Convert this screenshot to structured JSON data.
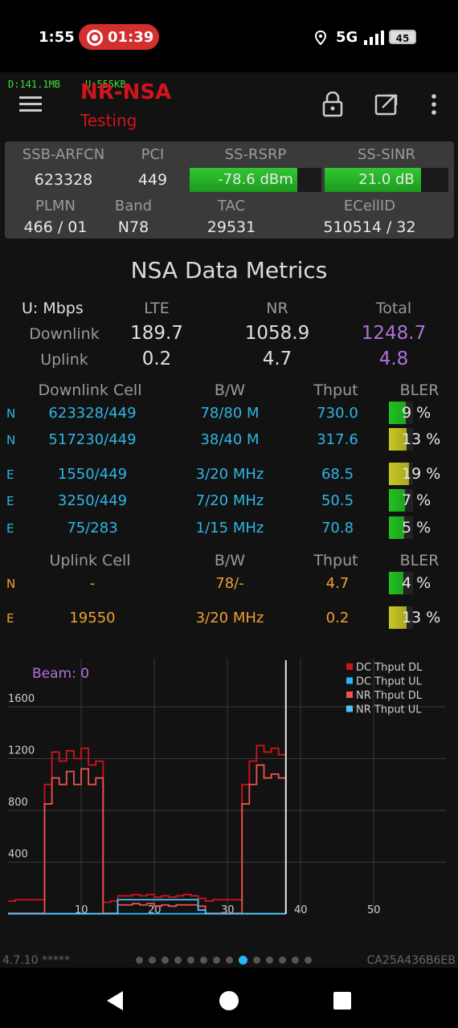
{
  "status_bar": {
    "time": "1:55",
    "recording_time": "01:39",
    "network": "5G",
    "battery": "45"
  },
  "app_bar": {
    "download_traffic": "D:141.1MB",
    "upload_traffic": "U:555KB",
    "title": "NR-NSA",
    "subtitle": "Testing"
  },
  "cell_info": {
    "labels": {
      "arfcn": "SSB-ARFCN",
      "pci": "PCI",
      "rsrp": "SS-RSRP",
      "sinr": "SS-SINR",
      "plmn": "PLMN",
      "band": "Band",
      "tac": "TAC",
      "ecellid": "ECellID"
    },
    "arfcn": "623328",
    "pci": "449",
    "rsrp": "-78.6 dBm",
    "rsrp_level": 0.82,
    "sinr": "21.0 dB",
    "sinr_level": 0.78,
    "plmn": "466 / 01",
    "band": "N78",
    "tac": "29531",
    "ecellid": "510514 / 32"
  },
  "metrics": {
    "heading": "NSA Data Metrics",
    "unit_label": "U: Mbps",
    "col_lte": "LTE",
    "col_nr": "NR",
    "col_total": "Total",
    "downlink_label": "Downlink",
    "uplink_label": "Uplink",
    "dl_lte": "189.7",
    "dl_nr": "1058.9",
    "dl_total": "1248.7",
    "ul_lte": "0.2",
    "ul_nr": "4.7",
    "ul_total": "4.8"
  },
  "downlink_cells": {
    "headers": {
      "cell": "Downlink Cell",
      "bw": "B/W",
      "thput": "Thput",
      "bler": "BLER"
    },
    "rows": [
      {
        "tag": "N",
        "cell": "623328/449",
        "bw": "78/80 M",
        "thput": "730.0",
        "bler": "9 %",
        "bler_level": 0.09,
        "color": "#1fc21f"
      },
      {
        "tag": "N",
        "cell": "517230/449",
        "bw": "38/40 M",
        "thput": "317.6",
        "bler": "13 %",
        "bler_level": 0.13,
        "color": "#c8c822"
      },
      {
        "tag": "E",
        "cell": "1550/449",
        "bw": "3/20 MHz",
        "thput": "68.5",
        "bler": "19 %",
        "bler_level": 0.19,
        "color": "#c8c822"
      },
      {
        "tag": "E",
        "cell": "3250/449",
        "bw": "7/20 MHz",
        "thput": "50.5",
        "bler": "7 %",
        "bler_level": 0.07,
        "color": "#1fc21f"
      },
      {
        "tag": "E",
        "cell": "75/283",
        "bw": "1/15 MHz",
        "thput": "70.8",
        "bler": "5 %",
        "bler_level": 0.05,
        "color": "#1fc21f"
      }
    ]
  },
  "uplink_cells": {
    "headers": {
      "cell": "Uplink Cell",
      "bw": "B/W",
      "thput": "Thput",
      "bler": "BLER"
    },
    "rows": [
      {
        "tag": "N",
        "cell": "-",
        "bw": "78/-",
        "thput": "4.7",
        "bler": "4 %",
        "bler_level": 0.04,
        "color": "#1fc21f"
      },
      {
        "tag": "E",
        "cell": "19550",
        "bw": "3/20 MHz",
        "thput": "0.2",
        "bler": "13 %",
        "bler_level": 0.13,
        "color": "#c8c822"
      }
    ]
  },
  "chart_data": {
    "type": "line",
    "annotation": "Beam: 0",
    "xlim": [
      0,
      50
    ],
    "ylim": [
      0,
      1600
    ],
    "x_ticks": [
      10,
      20,
      30,
      40,
      50
    ],
    "y_ticks": [
      400,
      800,
      1200,
      1600
    ],
    "cursor_x": 38,
    "legend_position": "top-right",
    "grid": true,
    "series": [
      {
        "name": "DC Thput DL",
        "color": "#d0141a",
        "x": [
          0,
          1,
          2,
          3,
          4,
          5,
          6,
          7,
          8,
          9,
          10,
          11,
          12,
          13,
          14,
          15,
          16,
          17,
          18,
          19,
          20,
          21,
          22,
          23,
          24,
          25,
          26,
          27,
          28,
          29,
          30,
          31,
          32,
          33,
          34,
          35,
          36,
          37,
          38
        ],
        "y": [
          100,
          110,
          110,
          110,
          110,
          1000,
          1250,
          1180,
          1260,
          1200,
          1280,
          1150,
          1180,
          90,
          100,
          140,
          140,
          150,
          140,
          150,
          130,
          140,
          130,
          140,
          150,
          140,
          120,
          100,
          110,
          110,
          110,
          110,
          1000,
          1180,
          1300,
          1250,
          1280,
          1230,
          1280
        ]
      },
      {
        "name": "DC Thput UL",
        "color": "#29b6f6",
        "x": [
          0,
          5,
          10,
          15,
          20,
          25,
          30,
          35,
          38
        ],
        "y": [
          2,
          2,
          2,
          2,
          2,
          2,
          2,
          2,
          2
        ]
      },
      {
        "name": "NR Thput DL",
        "color": "#ef5350",
        "x": [
          0,
          1,
          2,
          3,
          4,
          5,
          6,
          7,
          8,
          9,
          10,
          11,
          12,
          13,
          14,
          15,
          16,
          17,
          18,
          19,
          20,
          21,
          22,
          23,
          24,
          25,
          26,
          27,
          28,
          29,
          30,
          31,
          32,
          33,
          34,
          35,
          36,
          37,
          38
        ],
        "y": [
          5,
          5,
          5,
          5,
          5,
          850,
          1050,
          1000,
          1100,
          1000,
          1120,
          1000,
          1050,
          5,
          5,
          70,
          70,
          80,
          70,
          80,
          60,
          70,
          60,
          70,
          70,
          70,
          60,
          5,
          5,
          5,
          5,
          5,
          850,
          1000,
          1150,
          1050,
          1080,
          1050,
          1080
        ]
      },
      {
        "name": "NR Thput UL",
        "color": "#4fc3f7",
        "x": [
          0,
          5,
          10,
          14,
          15,
          20,
          25,
          26,
          27,
          30,
          35,
          38
        ],
        "y": [
          2,
          2,
          2,
          2,
          110,
          110,
          110,
          30,
          2,
          2,
          2,
          2
        ]
      }
    ]
  },
  "footer": {
    "version": "4.7.10 *****",
    "device_id": "CA25A436B6EB",
    "page_count": 14,
    "active_page": 9
  }
}
